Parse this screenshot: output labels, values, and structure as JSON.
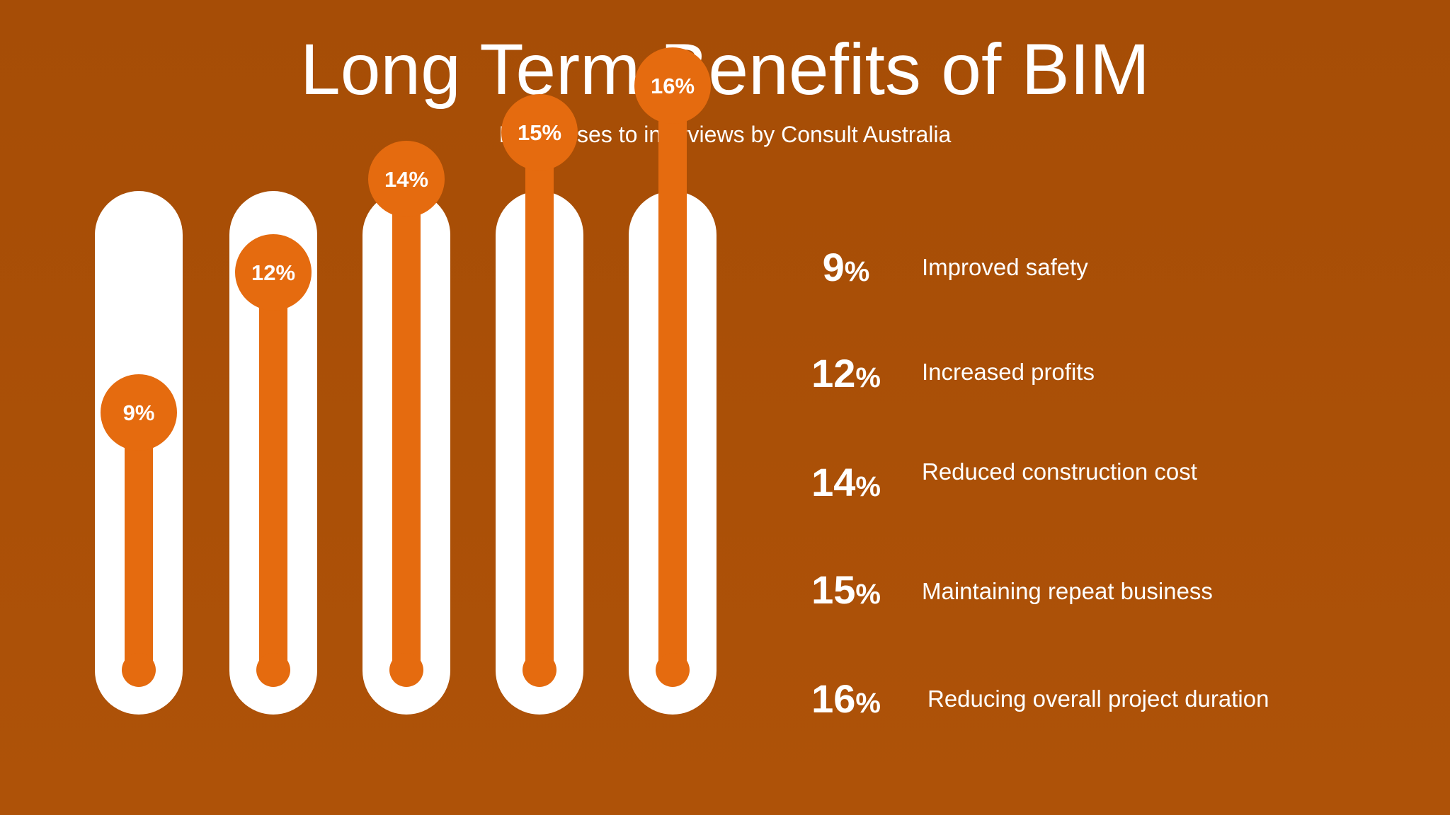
{
  "title": "Long Term Benefits of BIM",
  "subtitle": "Responses to interviews by Consult Australia",
  "colors": {
    "background": "#ae5208",
    "tube": "#ffffff",
    "fill": "#e56b0f",
    "text": "#ffffff"
  },
  "chart_data": {
    "type": "bar",
    "title": "Long Term Benefits of BIM",
    "subtitle": "Responses to interviews by Consult Australia",
    "categories": [
      "Improved safety",
      "Increased profits",
      "Reduced construction cost",
      "Maintaining repeat business",
      "Reducing overall project duration"
    ],
    "values": [
      9,
      12,
      14,
      15,
      16
    ],
    "data_labels": [
      "9%",
      "12%",
      "14%",
      "15%",
      "16%"
    ],
    "unit": "%",
    "grid": false,
    "legend": "right"
  },
  "legend": [
    {
      "value": "9",
      "unit": "%",
      "label": "Improved safety"
    },
    {
      "value": "12",
      "unit": "%",
      "label": "Increased profits"
    },
    {
      "value": "14",
      "unit": "%",
      "label": "Reduced construction cost"
    },
    {
      "value": "15",
      "unit": "%",
      "label": "Maintaining repeat business"
    },
    {
      "value": "16",
      "unit": "%",
      "label": "Reducing overall project duration"
    }
  ]
}
